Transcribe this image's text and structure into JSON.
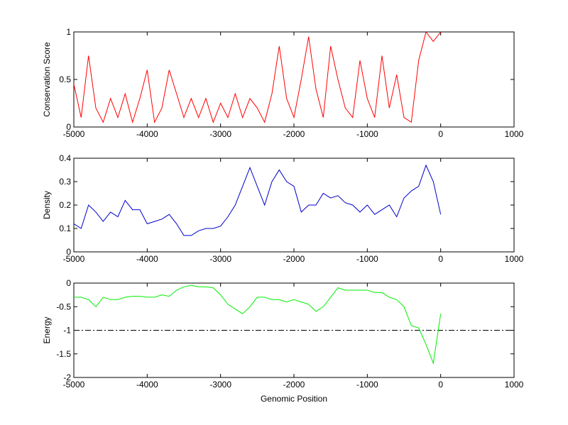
{
  "chart_data": [
    {
      "type": "line",
      "ylabel": "Conservation Score",
      "x": [
        -5000,
        -4900,
        -4800,
        -4700,
        -4600,
        -4500,
        -4400,
        -4300,
        -4200,
        -4100,
        -4000,
        -3900,
        -3800,
        -3700,
        -3600,
        -3500,
        -3400,
        -3300,
        -3200,
        -3100,
        -3000,
        -2900,
        -2800,
        -2700,
        -2600,
        -2500,
        -2400,
        -2300,
        -2200,
        -2100,
        -2000,
        -1900,
        -1800,
        -1700,
        -1600,
        -1500,
        -1400,
        -1300,
        -1200,
        -1100,
        -1000,
        -900,
        -800,
        -700,
        -600,
        -500,
        -400,
        -300,
        -200,
        -100,
        0
      ],
      "series": [
        {
          "color": "#ff0000",
          "values": [
            0.45,
            0.1,
            0.75,
            0.2,
            0.05,
            0.3,
            0.1,
            0.35,
            0.05,
            0.3,
            0.6,
            0.05,
            0.2,
            0.6,
            0.35,
            0.1,
            0.3,
            0.1,
            0.3,
            0.05,
            0.25,
            0.1,
            0.35,
            0.1,
            0.3,
            0.2,
            0.05,
            0.35,
            0.85,
            0.3,
            0.1,
            0.5,
            0.95,
            0.4,
            0.1,
            0.85,
            0.5,
            0.2,
            0.1,
            0.7,
            0.3,
            0.1,
            0.75,
            0.2,
            0.55,
            0.1,
            0.05,
            0.7,
            1,
            0.9,
            1
          ]
        }
      ],
      "xlim": [
        -5000,
        1000
      ],
      "xticks": [
        -5000,
        -4000,
        -3000,
        -2000,
        -1000,
        0,
        1000
      ],
      "ylim": [
        0,
        1
      ],
      "yticks": [
        0,
        0.5,
        1
      ]
    },
    {
      "type": "line",
      "ylabel": "Density",
      "x": [
        -5000,
        -4900,
        -4800,
        -4700,
        -4600,
        -4500,
        -4400,
        -4300,
        -4200,
        -4100,
        -4000,
        -3900,
        -3800,
        -3700,
        -3600,
        -3500,
        -3400,
        -3300,
        -3200,
        -3100,
        -3000,
        -2900,
        -2800,
        -2700,
        -2600,
        -2500,
        -2400,
        -2300,
        -2200,
        -2100,
        -2000,
        -1900,
        -1800,
        -1700,
        -1600,
        -1500,
        -1400,
        -1300,
        -1200,
        -1100,
        -1000,
        -900,
        -800,
        -700,
        -600,
        -500,
        -400,
        -300,
        -200,
        -100,
        0
      ],
      "series": [
        {
          "color": "#0000cc",
          "values": [
            0.12,
            0.1,
            0.2,
            0.17,
            0.13,
            0.17,
            0.15,
            0.22,
            0.18,
            0.18,
            0.12,
            0.13,
            0.14,
            0.16,
            0.12,
            0.07,
            0.07,
            0.09,
            0.1,
            0.1,
            0.11,
            0.15,
            0.2,
            0.28,
            0.36,
            0.28,
            0.2,
            0.3,
            0.35,
            0.3,
            0.28,
            0.17,
            0.2,
            0.2,
            0.25,
            0.23,
            0.24,
            0.21,
            0.2,
            0.17,
            0.2,
            0.16,
            0.18,
            0.2,
            0.15,
            0.23,
            0.26,
            0.28,
            0.37,
            0.3,
            0.16
          ]
        }
      ],
      "xlim": [
        -5000,
        1000
      ],
      "xticks": [
        -5000,
        -4000,
        -3000,
        -2000,
        -1000,
        0,
        1000
      ],
      "ylim": [
        0,
        0.4
      ],
      "yticks": [
        0,
        0.1,
        0.2,
        0.3,
        0.4
      ]
    },
    {
      "type": "line",
      "ylabel": "Energy",
      "xlabel": "Genomic Position",
      "x": [
        -5000,
        -4900,
        -4800,
        -4700,
        -4600,
        -4500,
        -4400,
        -4300,
        -4200,
        -4100,
        -4000,
        -3900,
        -3800,
        -3700,
        -3600,
        -3500,
        -3400,
        -3300,
        -3200,
        -3100,
        -3000,
        -2900,
        -2800,
        -2700,
        -2600,
        -2500,
        -2400,
        -2300,
        -2200,
        -2100,
        -2000,
        -1900,
        -1800,
        -1700,
        -1600,
        -1500,
        -1400,
        -1300,
        -1200,
        -1100,
        -1000,
        -900,
        -800,
        -700,
        -600,
        -500,
        -400,
        -300,
        -200,
        -100,
        0
      ],
      "series": [
        {
          "color": "#00ee00",
          "values": [
            -0.3,
            -0.3,
            -0.35,
            -0.5,
            -0.3,
            -0.35,
            -0.35,
            -0.3,
            -0.28,
            -0.28,
            -0.3,
            -0.3,
            -0.25,
            -0.28,
            -0.15,
            -0.08,
            -0.05,
            -0.08,
            -0.08,
            -0.1,
            -0.25,
            -0.45,
            -0.55,
            -0.65,
            -0.5,
            -0.3,
            -0.3,
            -0.35,
            -0.35,
            -0.4,
            -0.35,
            -0.4,
            -0.45,
            -0.6,
            -0.5,
            -0.3,
            -0.1,
            -0.15,
            -0.15,
            -0.15,
            -0.15,
            -0.2,
            -0.2,
            -0.3,
            -0.35,
            -0.5,
            -0.9,
            -0.95,
            -1.3,
            -1.7,
            -0.65
          ]
        }
      ],
      "reference_line": -1,
      "xlim": [
        -5000,
        1000
      ],
      "xticks": [
        -5000,
        -4000,
        -3000,
        -2000,
        -1000,
        0,
        1000
      ],
      "ylim": [
        -2,
        0
      ],
      "yticks": [
        -2,
        -1.5,
        -1,
        -0.5,
        0
      ]
    }
  ]
}
